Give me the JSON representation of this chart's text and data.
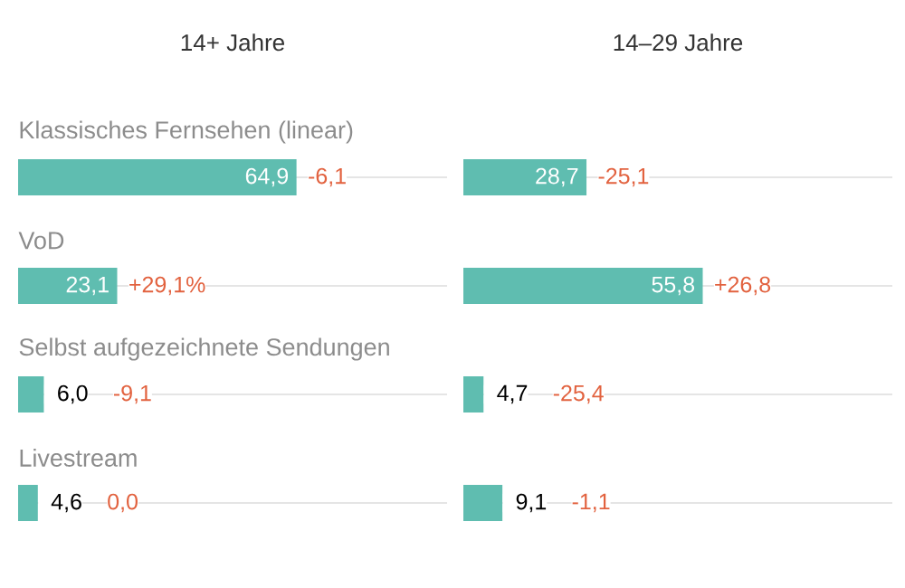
{
  "chart_data": [
    {
      "type": "bar",
      "orientation": "horizontal",
      "title": "14+ Jahre",
      "categories": [
        "Klassisches Fernsehen (linear)",
        "VoD",
        "Selbst aufgezeichnete Sendungen",
        "Livestream"
      ],
      "values": [
        64.9,
        23.1,
        6.0,
        4.6
      ],
      "value_labels": [
        "64,9",
        "23,1",
        "6,0",
        "4,6"
      ],
      "color": "#5fbdb0",
      "xlim": [
        0,
        100
      ],
      "grid": "y",
      "annotations": [
        "-6,1",
        "+29,1%",
        "-9,1",
        "0,0"
      ]
    },
    {
      "type": "bar",
      "orientation": "horizontal",
      "title": "14–29 Jahre",
      "categories": [
        null,
        null,
        null,
        null
      ],
      "values": [
        28.7,
        55.8,
        4.7,
        9.1
      ],
      "value_labels": [
        "28,7",
        "55,8",
        "4,7",
        "9,1"
      ],
      "color": "#5fbdb0",
      "xlim": [
        0,
        100
      ],
      "grid": "y",
      "annotations": [
        "-25,1",
        "+26,8",
        "-25,4",
        "-1,1"
      ]
    }
  ]
}
